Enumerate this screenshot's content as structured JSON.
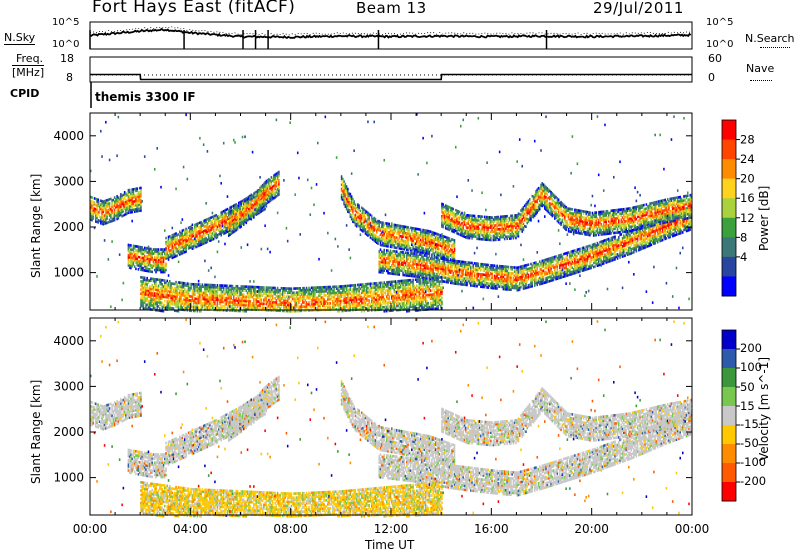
{
  "header": {
    "station": "Fort Hays East (fitACF)",
    "beam": "Beam 13",
    "date": "29/Jul/2011"
  },
  "noise_panel": {
    "left_label": "N.Sky",
    "left_ticks": [
      "10^5",
      "10^0"
    ],
    "right_ticks": [
      "10^5",
      "10^0"
    ],
    "right_label": "N.Search"
  },
  "freq_panel": {
    "left_label_1": "Freq.",
    "left_label_2": "[MHz]",
    "left_ticks": [
      "18",
      "8"
    ],
    "right_ticks": [
      "60",
      "0"
    ],
    "right_label": "Nave"
  },
  "cpid": {
    "label": "CPID",
    "program": "themis 3300 IF"
  },
  "chart_data": [
    {
      "type": "line",
      "panel": "noise",
      "x": [
        "00:00",
        "02:00",
        "03:00",
        "04:00",
        "06:00",
        "08:00",
        "10:00",
        "12:00",
        "14:00",
        "16:00",
        "18:00",
        "20:00",
        "22:00",
        "24:00"
      ],
      "series": [
        {
          "name": "N.Sky",
          "values": [
            2.5,
            3.3,
            3.6,
            3.0,
            2.3,
            2.2,
            2.4,
            2.3,
            2.4,
            2.3,
            2.4,
            2.3,
            2.4,
            2.6
          ]
        }
      ],
      "ylim": [
        0,
        5
      ],
      "scale": "log"
    },
    {
      "type": "line",
      "panel": "frequency",
      "x": [
        "00:00",
        "02:00",
        "02:01",
        "14:00",
        "14:01",
        "24:00"
      ],
      "series": [
        {
          "name": "Freq.",
          "values": [
            11.0,
            11.0,
            9.0,
            9.0,
            11.0,
            11.0
          ]
        },
        {
          "name": "Nave",
          "values": [
            10,
            10,
            10,
            10,
            10,
            10
          ]
        }
      ],
      "ylim": [
        8,
        18
      ],
      "y2lim": [
        0,
        60
      ]
    },
    {
      "type": "heatmap",
      "panel": "power",
      "title": "",
      "xlabel": "Time UT",
      "ylabel": "Slant Range [km]",
      "xlim": [
        0,
        24
      ],
      "ylim": [
        180,
        4500
      ],
      "xticks": [
        "00:00",
        "04:00",
        "08:00",
        "12:00",
        "16:00",
        "20:00",
        "00:00"
      ],
      "yticks": [
        1000,
        2000,
        3000,
        4000
      ],
      "colorbar": {
        "label": "Power [dB]",
        "ticks": [
          "28",
          "24",
          "20",
          "16",
          "12",
          "8",
          "4"
        ],
        "colors": [
          "#ff0000",
          "#ff4500",
          "#ff8c00",
          "#ffd21e",
          "#aad23c",
          "#3ca03c",
          "#3c7878",
          "#2846a0",
          "#0000ff"
        ]
      },
      "echo_bands": [
        {
          "t": [
            0.0,
            0.5,
            1.0,
            1.5,
            2.0
          ],
          "r": [
            2450,
            2350,
            2450,
            2600,
            2650
          ]
        },
        {
          "t": [
            1.5,
            2.5,
            3.0
          ],
          "r": [
            1400,
            1300,
            1300
          ]
        },
        {
          "t": [
            3.0,
            4.0,
            5.0,
            6.0,
            7.0
          ],
          "r": [
            1550,
            1800,
            2050,
            2350,
            2700
          ]
        },
        {
          "t": [
            5.5,
            6.5,
            7.0,
            7.5
          ],
          "r": [
            2100,
            2500,
            2800,
            3000
          ]
        },
        {
          "t": [
            10.0,
            10.5,
            11.5,
            12.5,
            13.5,
            14.5
          ],
          "r": [
            2900,
            2350,
            1900,
            1800,
            1700,
            1500
          ]
        },
        {
          "t": [
            11.5,
            13.0,
            14.5,
            16.0,
            17.0,
            18.0,
            20.0,
            21.5,
            23.0,
            24.0
          ],
          "r": [
            1300,
            1200,
            1050,
            950,
            900,
            1050,
            1400,
            1700,
            2050,
            2250
          ]
        },
        {
          "t": [
            14.0,
            15.0,
            16.0,
            17.0,
            18.0,
            19.0,
            20.0,
            21.5,
            23.0,
            24.0
          ],
          "r": [
            2300,
            2050,
            2000,
            2050,
            2750,
            2200,
            2100,
            2200,
            2400,
            2500
          ]
        },
        {
          "t": [
            2.0,
            4.0,
            6.0,
            8.0,
            10.0,
            12.0,
            14.0
          ],
          "r": [
            600,
            450,
            400,
            350,
            400,
            500,
            600
          ]
        }
      ]
    },
    {
      "type": "heatmap",
      "panel": "velocity",
      "xlabel": "Time UT",
      "ylabel": "Slant Range [km]",
      "xlim": [
        0,
        24
      ],
      "ylim": [
        180,
        4500
      ],
      "xticks": [
        "00:00",
        "04:00",
        "08:00",
        "12:00",
        "16:00",
        "20:00",
        "00:00"
      ],
      "yticks": [
        1000,
        2000,
        3000,
        4000
      ],
      "colorbar": {
        "label": "Velocity [m s^-1]",
        "ticks": [
          "200",
          "100",
          "50",
          "15",
          "-15",
          "-50",
          "-100",
          "-200"
        ],
        "colors": [
          "#0000c8",
          "#2d5aaa",
          "#3c963c",
          "#78c850",
          "#c8c8c8",
          "#ffc800",
          "#ff8c00",
          "#ff5a00",
          "#ff0000"
        ]
      }
    }
  ]
}
